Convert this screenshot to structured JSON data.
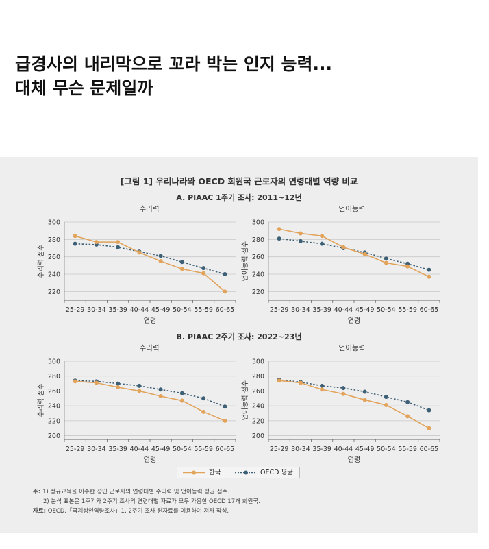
{
  "headline": {
    "line1": "급경사의 내리막으로 꼬라 박는 인지 능력...",
    "line2": "대체 무슨 문제일까"
  },
  "figure": {
    "title": "[그림 1] 우리나라와 OECD 회원국 근로자의 연령대별 역량 비교",
    "section_a": "A. PIAAC 1주기 조사: 2011~12년",
    "section_b": "B. PIAAC 2주기 조사: 2022~23년",
    "legend": {
      "korea": "한국",
      "oecd": "OECD 평균"
    },
    "notes": {
      "note_label": "주:",
      "note1": "1) 정규교육을 이수한 성인 근로자의 연령대별 수리력 및 언어능력 평균 점수.",
      "note2": "2) 분석 표본은 1주기와 2주기 조사의 연령대별 자료가 모두 가용한 OECD 17개 회원국.",
      "source_label": "자료:",
      "source": "OECD,「국제성인역량조사」1, 2주기 조사 원자료를 이용하여 저자 작성."
    },
    "colors": {
      "korea": "#e2a35a",
      "oecd": "#3e6076",
      "grid": "#c8c8c8"
    }
  },
  "chart_data": [
    {
      "type": "line",
      "panel": "A-numeracy",
      "title": "수리력",
      "xlabel": "연령",
      "ylabel": "수리력 점수",
      "ylim": [
        210,
        300
      ],
      "yticks": [
        220,
        240,
        260,
        280,
        300
      ],
      "categories": [
        "25-29",
        "30-34",
        "35-39",
        "40-44",
        "45-49",
        "50-54",
        "55-59",
        "60-65"
      ],
      "series": [
        {
          "name": "한국",
          "values": [
            284,
            277,
            277,
            265,
            255,
            246,
            241,
            220
          ]
        },
        {
          "name": "OECD 평균",
          "values": [
            275,
            274,
            271,
            266,
            261,
            254,
            247,
            240
          ]
        }
      ]
    },
    {
      "type": "line",
      "panel": "A-literacy",
      "title": "언어능력",
      "xlabel": "연령",
      "ylabel": "언어능력 점수",
      "ylim": [
        210,
        300
      ],
      "yticks": [
        220,
        240,
        260,
        280,
        300
      ],
      "categories": [
        "25-29",
        "30-34",
        "35-39",
        "40-44",
        "45-49",
        "50-54",
        "55-59",
        "60-65"
      ],
      "series": [
        {
          "name": "한국",
          "values": [
            292,
            287,
            284,
            271,
            263,
            253,
            249,
            237
          ]
        },
        {
          "name": "OECD 평균",
          "values": [
            281,
            278,
            275,
            270,
            265,
            258,
            252,
            245
          ]
        }
      ]
    },
    {
      "type": "line",
      "panel": "B-numeracy",
      "title": "수리력",
      "xlabel": "연령",
      "ylabel": "수리력 점수",
      "ylim": [
        195,
        300
      ],
      "yticks": [
        200,
        220,
        240,
        260,
        280,
        300
      ],
      "categories": [
        "25-29",
        "30-34",
        "35-39",
        "40-44",
        "45-49",
        "50-54",
        "55-59",
        "60-65"
      ],
      "series": [
        {
          "name": "한국",
          "values": [
            273,
            271,
            265,
            260,
            253,
            247,
            232,
            220
          ]
        },
        {
          "name": "OECD 평균",
          "values": [
            274,
            273,
            270,
            267,
            262,
            257,
            250,
            239
          ]
        }
      ]
    },
    {
      "type": "line",
      "panel": "B-literacy",
      "title": "언어능력",
      "xlabel": "연령",
      "ylabel": "언어능력 점수",
      "ylim": [
        195,
        300
      ],
      "yticks": [
        200,
        220,
        240,
        260,
        280,
        300
      ],
      "categories": [
        "25-29",
        "30-34",
        "35-39",
        "40-44",
        "45-49",
        "50-54",
        "55-59",
        "60-65"
      ],
      "series": [
        {
          "name": "한국",
          "values": [
            274,
            271,
            262,
            256,
            248,
            241,
            226,
            210
          ]
        },
        {
          "name": "OECD 평균",
          "values": [
            275,
            272,
            267,
            264,
            259,
            252,
            245,
            234
          ]
        }
      ]
    }
  ]
}
